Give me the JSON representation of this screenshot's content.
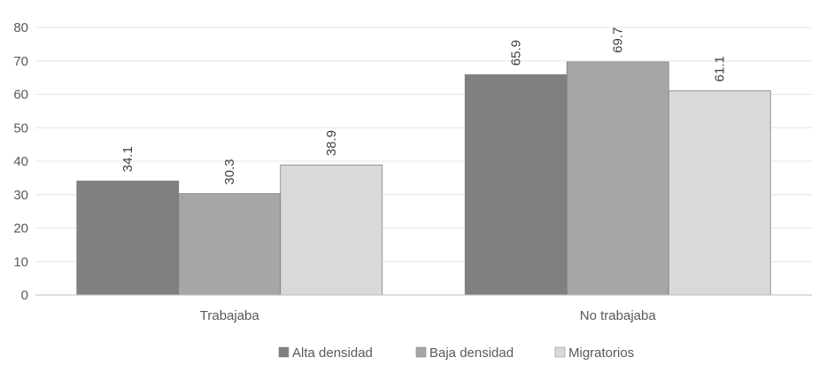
{
  "chart_data": {
    "type": "bar",
    "categories": [
      "Trabajaba",
      "No trabajaba"
    ],
    "series": [
      {
        "name": "Alta densidad",
        "values": [
          34.1,
          65.9
        ],
        "color": "#808080"
      },
      {
        "name": "Baja densidad",
        "values": [
          30.3,
          69.7
        ],
        "color": "#a6a6a6"
      },
      {
        "name": "Migratorios",
        "values": [
          38.9,
          61.1
        ],
        "color": "#d9d9d9"
      }
    ],
    "ylim": [
      0,
      80
    ],
    "yticks": [
      0,
      10,
      20,
      30,
      40,
      50,
      60,
      70,
      80
    ],
    "grid": true,
    "legend_position": "bottom",
    "data_labels": "vertical",
    "gridline_color": "#e6e6e6",
    "axis_color": "#bfbfbf",
    "bar_outline_color": "#7f7f7f"
  }
}
